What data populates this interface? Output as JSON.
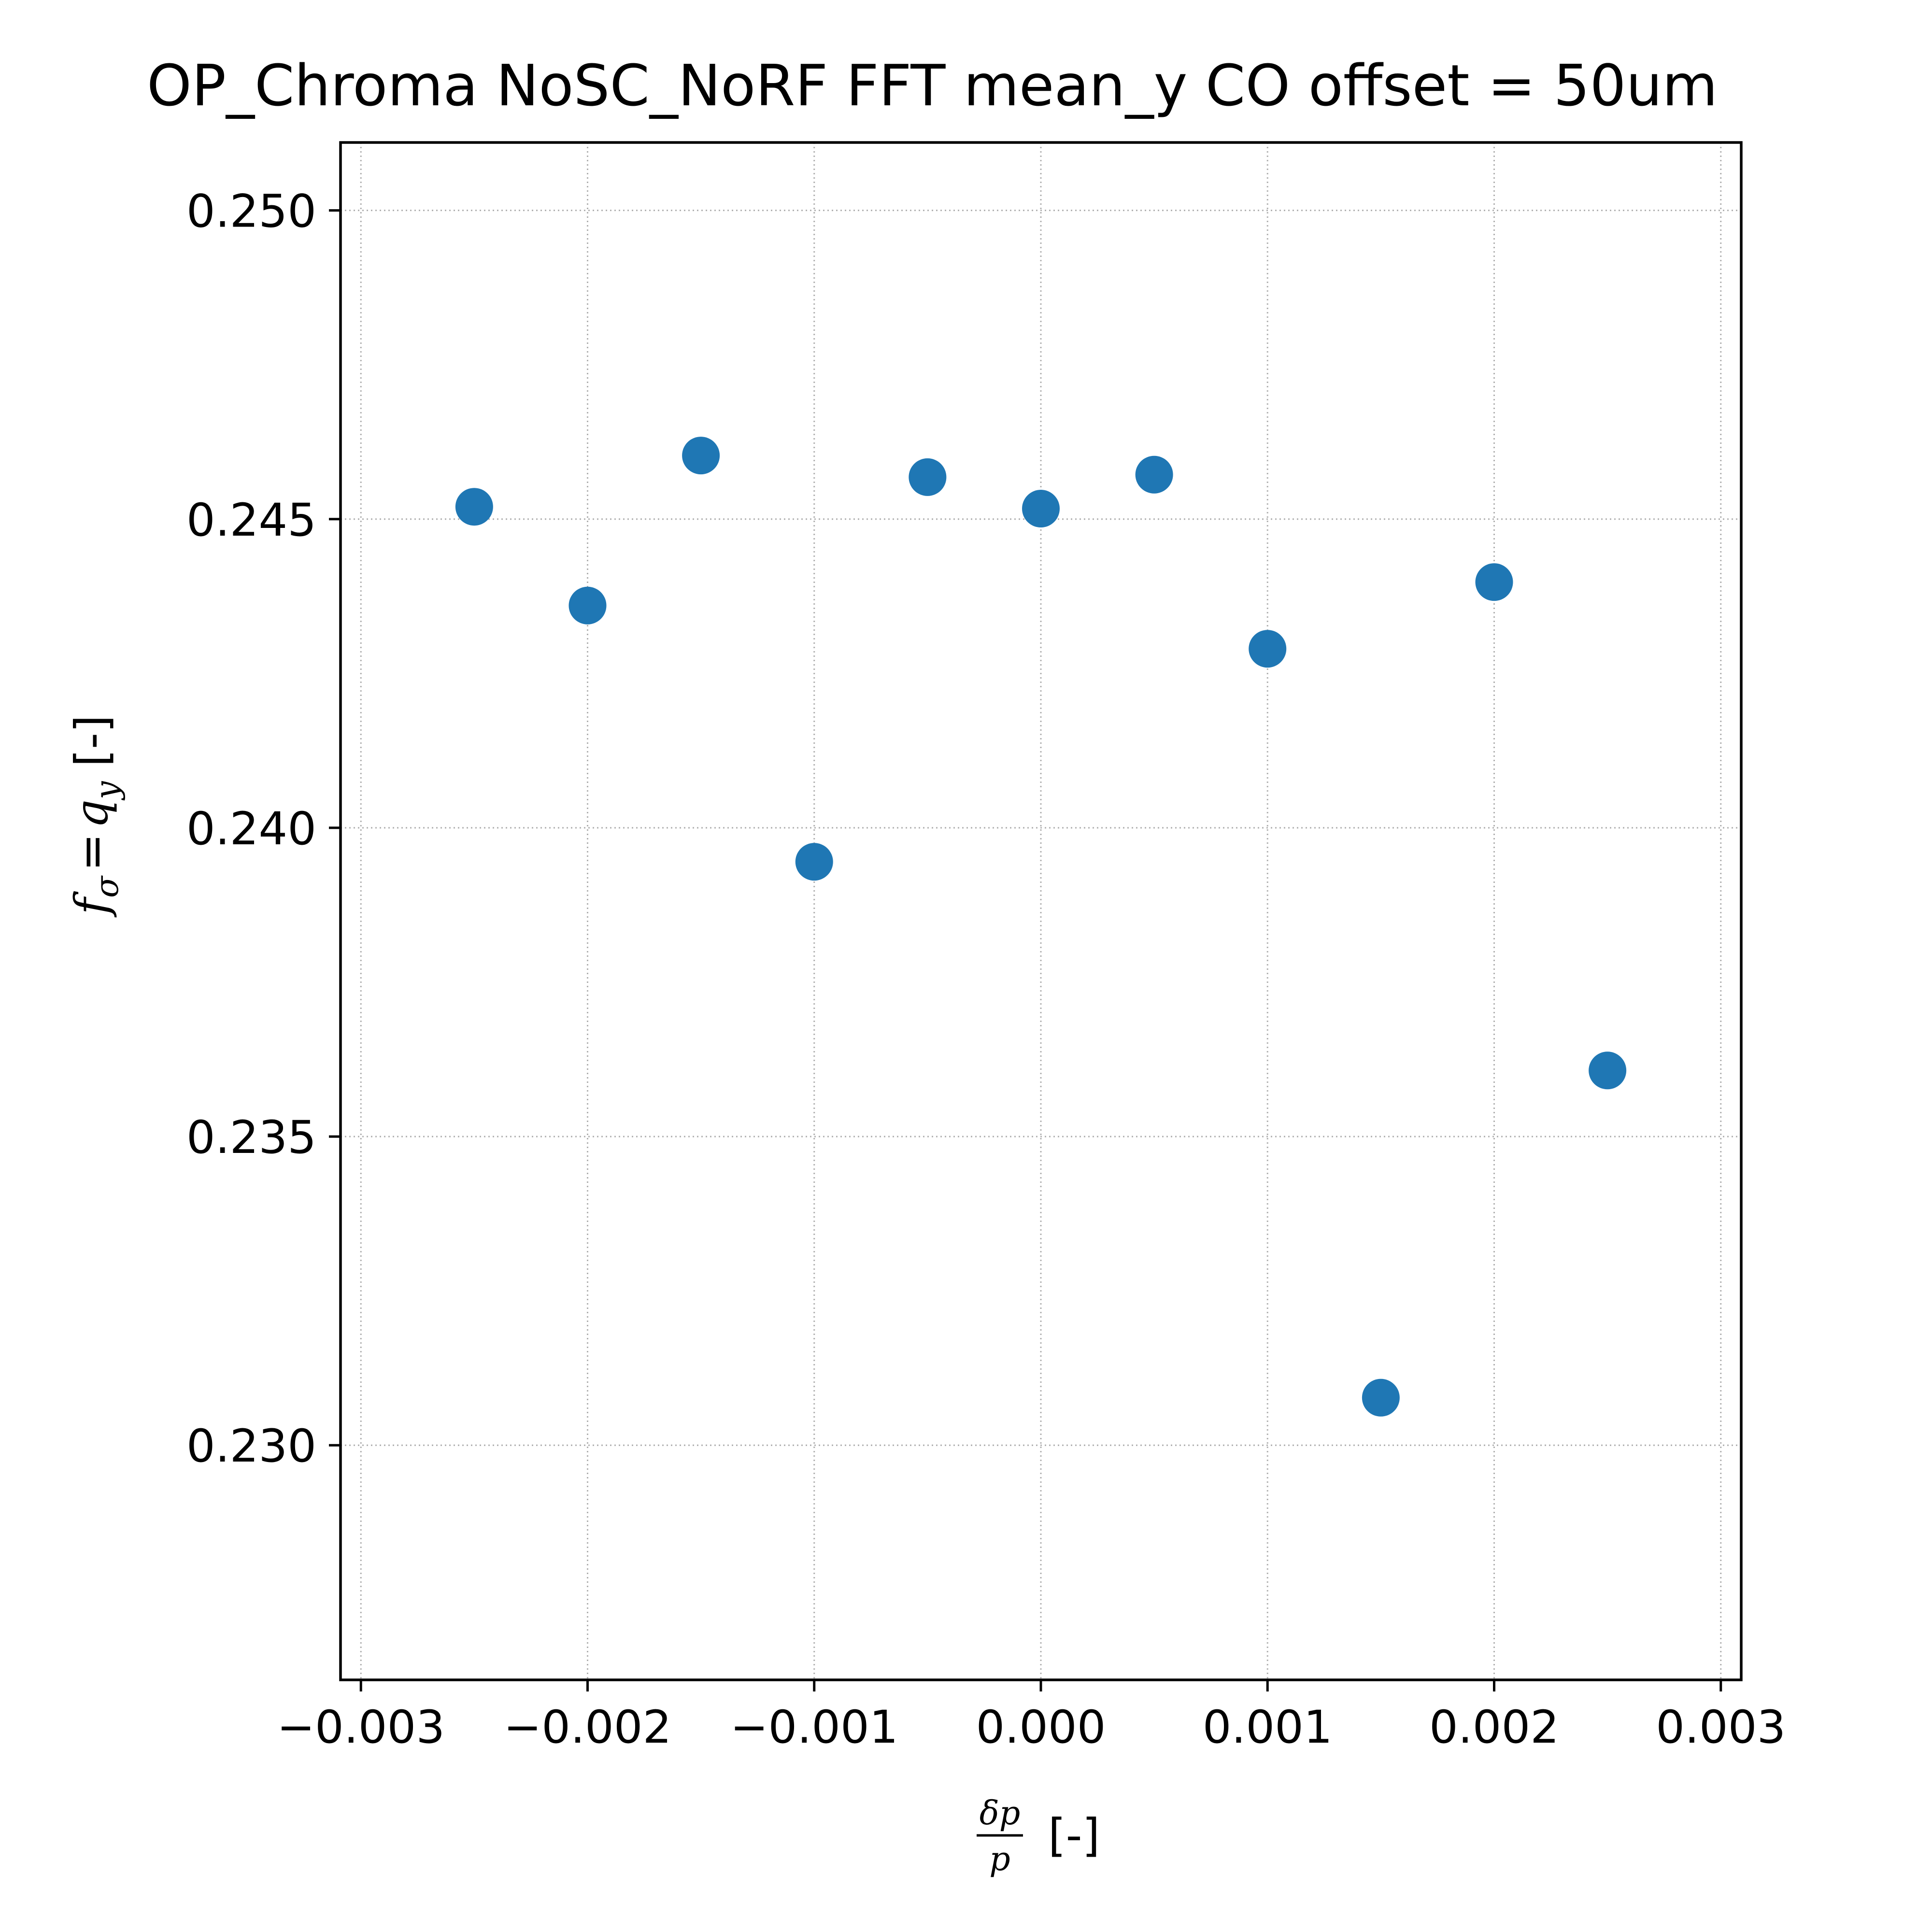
{
  "chart_data": {
    "type": "scatter",
    "title": "OP_Chroma NoSC_NoRF FFT mean_y CO offset = 50um",
    "xlabel": {
      "numerator": "δp",
      "denominator": "p",
      "unit": "[-]"
    },
    "ylabel": {
      "symbol": "f",
      "symbol_sub": "σ",
      "equals": "=",
      "symbol2": "q",
      "symbol2_sub": "y",
      "unit": "[-]"
    },
    "xlim": [
      -0.00309,
      0.00309
    ],
    "ylim": [
      0.2262,
      0.2511
    ],
    "x_ticks": [
      -0.003,
      -0.002,
      -0.001,
      0.0,
      0.001,
      0.002,
      0.003
    ],
    "x_tick_labels": [
      "−0.003",
      "−0.002",
      "−0.001",
      "0.000",
      "0.001",
      "0.002",
      "0.003"
    ],
    "y_ticks": [
      0.23,
      0.235,
      0.24,
      0.245,
      0.25
    ],
    "y_tick_labels": [
      "0.230",
      "0.235",
      "0.240",
      "0.245",
      "0.250"
    ],
    "grid": true,
    "grid_style": "dotted",
    "marker_color": "#1f77b4",
    "series": [
      {
        "x": [
          -0.0025,
          -0.002,
          -0.0015,
          -0.001,
          -0.0005,
          0.0,
          0.0005,
          0.001,
          0.0015,
          0.002,
          0.0025
        ],
        "y": [
          0.2452,
          0.2436,
          0.24603,
          0.23945,
          0.24568,
          0.24517,
          0.24572,
          0.2429,
          0.23077,
          0.24398,
          0.23607
        ]
      }
    ]
  }
}
